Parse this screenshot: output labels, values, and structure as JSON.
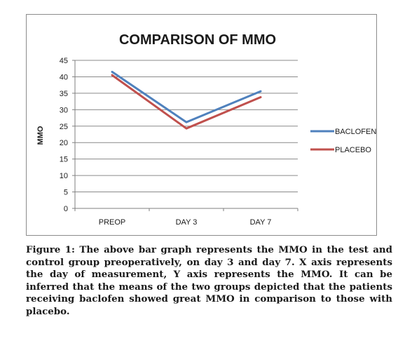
{
  "chart_data": {
    "type": "line",
    "title": "COMPARISON OF MMO",
    "xlabel": "",
    "ylabel": "MMO",
    "categories": [
      "PREOP",
      "DAY 3",
      "DAY 7"
    ],
    "ylim": [
      0,
      45
    ],
    "yticks": [
      0,
      5,
      10,
      15,
      20,
      25,
      30,
      35,
      40,
      45
    ],
    "grid": true,
    "legend_position": "right",
    "series": [
      {
        "name": "BACLOFEN",
        "color": "#4f81bd",
        "values": [
          41.5,
          26.2,
          35.6
        ]
      },
      {
        "name": "PLACEBO",
        "color": "#c0504d",
        "values": [
          40.5,
          24.3,
          33.8
        ]
      }
    ]
  },
  "caption": "Figure 1: The above bar graph represents the MMO in the test and control group preoperatively, on day 3 and day 7. X axis represents the day of measurement, Y axis represents the MMO. It can be inferred that the means of the two groups depicted that the patients receiving baclofen showed great MMO in comparison to those with placebo."
}
